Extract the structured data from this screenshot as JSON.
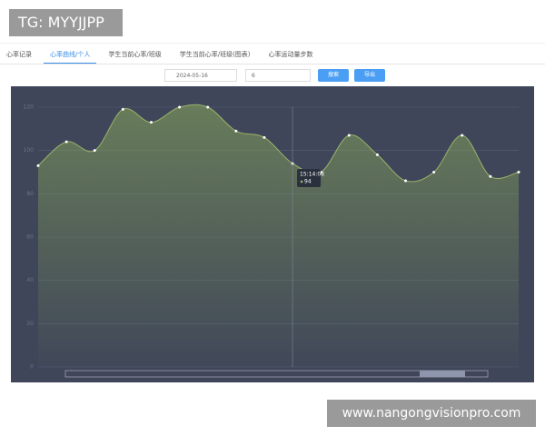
{
  "watermark_top": "TG: MYYJJPP",
  "tabs": [
    "心率记录",
    "心率曲线/个人",
    "学生当前心率/班级",
    "学生当前心率/班级(图表)",
    "心率运动量步数"
  ],
  "filters": {
    "date": "2024-05-16",
    "input": "6",
    "search_button": "搜索",
    "export_button": "导出"
  },
  "watermark_bottom": "www.nangongvisionpro.com",
  "chart_data": {
    "type": "area",
    "categories": [
      null,
      null,
      null,
      null,
      null,
      null,
      null,
      null,
      null,
      "15:14:08",
      null,
      null,
      null,
      null,
      null,
      null,
      null,
      null
    ],
    "values": [
      93,
      104,
      100,
      119,
      113,
      120,
      120,
      109,
      106,
      94,
      90,
      107,
      98,
      86,
      90,
      107,
      88,
      90
    ],
    "color": "#9bb56a",
    "ylim": [
      0,
      120
    ],
    "yticks": [
      0,
      20,
      40,
      60,
      80,
      100,
      120
    ],
    "grid": true,
    "tooltip_index": 9
  }
}
